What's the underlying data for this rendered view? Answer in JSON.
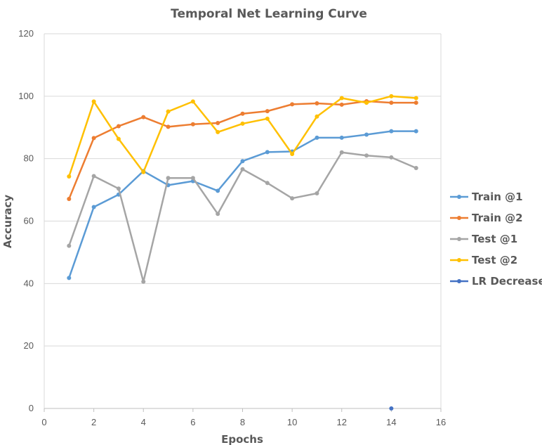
{
  "chart_data": {
    "type": "line",
    "title": "Temporal Net Learning Curve",
    "xlabel": "Epochs",
    "ylabel": "Accuracy",
    "xlim": [
      0,
      16
    ],
    "ylim": [
      0,
      120
    ],
    "xticks": [
      0,
      2,
      4,
      6,
      8,
      10,
      12,
      14,
      16
    ],
    "yticks": [
      0,
      20,
      40,
      60,
      80,
      100,
      120
    ],
    "grid": "horizontal",
    "legend_position": "right",
    "series": [
      {
        "name": "Train @1",
        "color": "#5B9BD5",
        "x": [
          1,
          2,
          3,
          4,
          5,
          6,
          7,
          8,
          9,
          10,
          11,
          12,
          13,
          14,
          15
        ],
        "y": [
          41.8,
          64.5,
          68.5,
          76.0,
          71.5,
          72.8,
          69.7,
          79.2,
          82.1,
          82.3,
          86.7,
          86.7,
          87.7,
          88.8,
          88.8
        ]
      },
      {
        "name": "Train @2",
        "color": "#ED7D31",
        "x": [
          1,
          2,
          3,
          4,
          5,
          6,
          7,
          8,
          9,
          10,
          11,
          12,
          13,
          14,
          15
        ],
        "y": [
          67.1,
          86.6,
          90.4,
          93.3,
          90.2,
          91.0,
          91.4,
          94.4,
          95.2,
          97.4,
          97.7,
          97.3,
          98.4,
          97.9,
          97.9
        ]
      },
      {
        "name": "Test @1",
        "color": "#A5A5A5",
        "x": [
          1,
          2,
          3,
          4,
          5,
          6,
          7,
          8,
          9,
          10,
          11,
          12,
          13,
          14,
          15
        ],
        "y": [
          52.1,
          74.4,
          70.4,
          40.6,
          73.8,
          73.8,
          62.3,
          76.6,
          72.2,
          67.3,
          68.9,
          82.0,
          81.0,
          80.4,
          77.0
        ]
      },
      {
        "name": "Test @2",
        "color": "#FFC000",
        "x": [
          1,
          2,
          3,
          4,
          5,
          6,
          7,
          8,
          9,
          10,
          11,
          12,
          13,
          14,
          15
        ],
        "y": [
          74.3,
          98.3,
          86.3,
          75.7,
          95.1,
          98.3,
          88.5,
          91.2,
          92.8,
          81.5,
          93.5,
          99.4,
          97.9,
          100.0,
          99.4
        ]
      },
      {
        "name": "LR Decrease",
        "color": "#4472C4",
        "x": [
          14
        ],
        "y": [
          0
        ]
      }
    ]
  }
}
